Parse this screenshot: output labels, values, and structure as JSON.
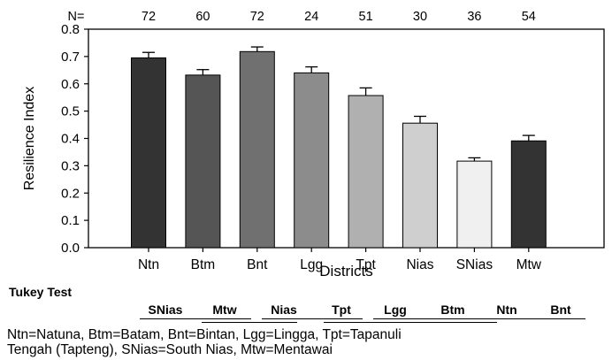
{
  "chart_data": {
    "type": "bar",
    "categories": [
      "Ntn",
      "Btm",
      "Bnt",
      "Lgg",
      "Tpt",
      "Nias",
      "SNias",
      "Mtw"
    ],
    "values": [
      0.695,
      0.632,
      0.718,
      0.64,
      0.557,
      0.456,
      0.317,
      0.391
    ],
    "errors": [
      0.02,
      0.02,
      0.017,
      0.022,
      0.028,
      0.025,
      0.012,
      0.02
    ],
    "n_label": "N=",
    "n_values": [
      "72",
      "60",
      "72",
      "24",
      "51",
      "30",
      "36",
      "54"
    ],
    "bar_colors": [
      "#333333",
      "#555555",
      "#707070",
      "#8c8c8c",
      "#b0b0b0",
      "#cfcfcf",
      "#f0f0f0",
      "#333333"
    ],
    "xlabel": "Districts",
    "ylabel": "Resilience Index",
    "ylim": [
      0,
      0.8
    ],
    "yticks": [
      "0.0",
      "0.1",
      "0.2",
      "0.3",
      "0.4",
      "0.5",
      "0.6",
      "0.7",
      "0.8"
    ],
    "grid": false
  },
  "tukey": {
    "title": "Tukey Test",
    "labels": [
      "SNias",
      "Mtw",
      "Nias",
      "Tpt",
      "Lgg",
      "Btm",
      "Ntn",
      "Bnt"
    ]
  },
  "footnote": {
    "line1": "Ntn=Natuna, Btm=Batam, Bnt=Bintan, Lgg=Lingga, Tpt=Tapanuli",
    "line2": "Tengah (Tapteng), SNias=South Nias, Mtw=Mentawai"
  }
}
